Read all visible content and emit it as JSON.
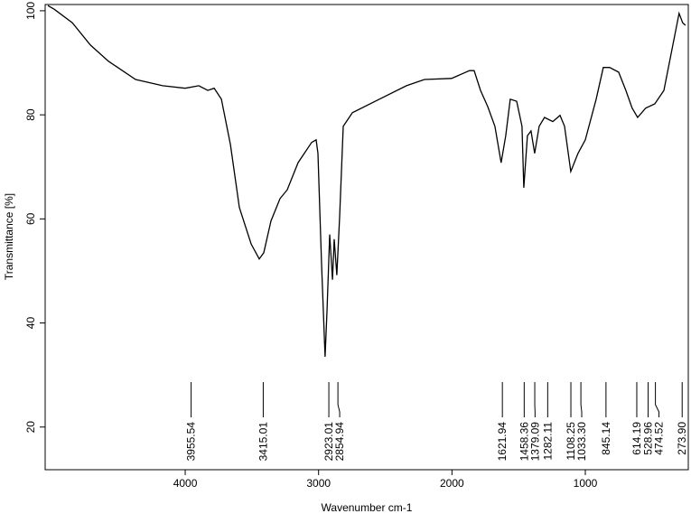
{
  "chart_data": {
    "type": "line",
    "x_label": "Wavenumber cm-1",
    "y_label": "Transmittance [%]",
    "xlim": [
      5050,
      228
    ],
    "ylim": [
      11.8,
      101.2
    ],
    "xticks": [
      4000,
      3000,
      2000,
      1000
    ],
    "yticks": [
      20,
      40,
      60,
      80,
      100
    ],
    "color": "#000000",
    "x": [
      5030,
      4982,
      4846,
      4711,
      4575,
      4372,
      4169,
      4000,
      3898,
      3831,
      3783,
      3729,
      3661,
      3594,
      3506,
      3445,
      3411,
      3357,
      3289,
      3235,
      3154,
      3052,
      3018,
      3005,
      2978,
      2951,
      2937,
      2917,
      2896,
      2883,
      2863,
      2842,
      2815,
      2747,
      2544,
      2341,
      2206,
      2003,
      1868,
      1834,
      1786,
      1732,
      1678,
      1631,
      1597,
      1563,
      1515,
      1475,
      1461,
      1434,
      1407,
      1380,
      1346,
      1306,
      1244,
      1190,
      1156,
      1109,
      1055,
      1000,
      919,
      865,
      818,
      750,
      696,
      649,
      608,
      547,
      479,
      411,
      344,
      297,
      270,
      249
    ],
    "values": [
      101,
      100.3,
      97.7,
      93.4,
      90.3,
      86.8,
      85.6,
      85.1,
      85.6,
      84.7,
      85.1,
      83,
      74.3,
      62.2,
      55.2,
      52.3,
      53.5,
      59.6,
      63.9,
      65.6,
      70.8,
      74.7,
      75.2,
      72.6,
      51.8,
      33.5,
      42.2,
      57,
      48.3,
      56.1,
      49.2,
      60.4,
      77.8,
      80.4,
      83,
      85.6,
      86.8,
      87,
      88.5,
      88.5,
      84.7,
      81.6,
      77.8,
      70.8,
      76,
      83,
      82.6,
      77.8,
      66,
      76,
      76.9,
      72.6,
      77.8,
      79.5,
      78.7,
      79.9,
      77.8,
      69.1,
      72.6,
      75.2,
      83,
      89.1,
      89.1,
      88.2,
      84.7,
      81.3,
      79.5,
      81.3,
      82.1,
      84.7,
      93.4,
      99.5,
      97.7,
      97.2
    ],
    "peaks": [
      3955.54,
      3415.01,
      2923.01,
      2854.94,
      1621.94,
      1458.36,
      1379.09,
      1282.11,
      1108.25,
      {
        "value": 1033.3,
        "label": "1033.30"
      },
      845.14,
      614.19,
      528.96,
      474.52,
      {
        "value": 273.9,
        "label": "273.90"
      }
    ]
  }
}
